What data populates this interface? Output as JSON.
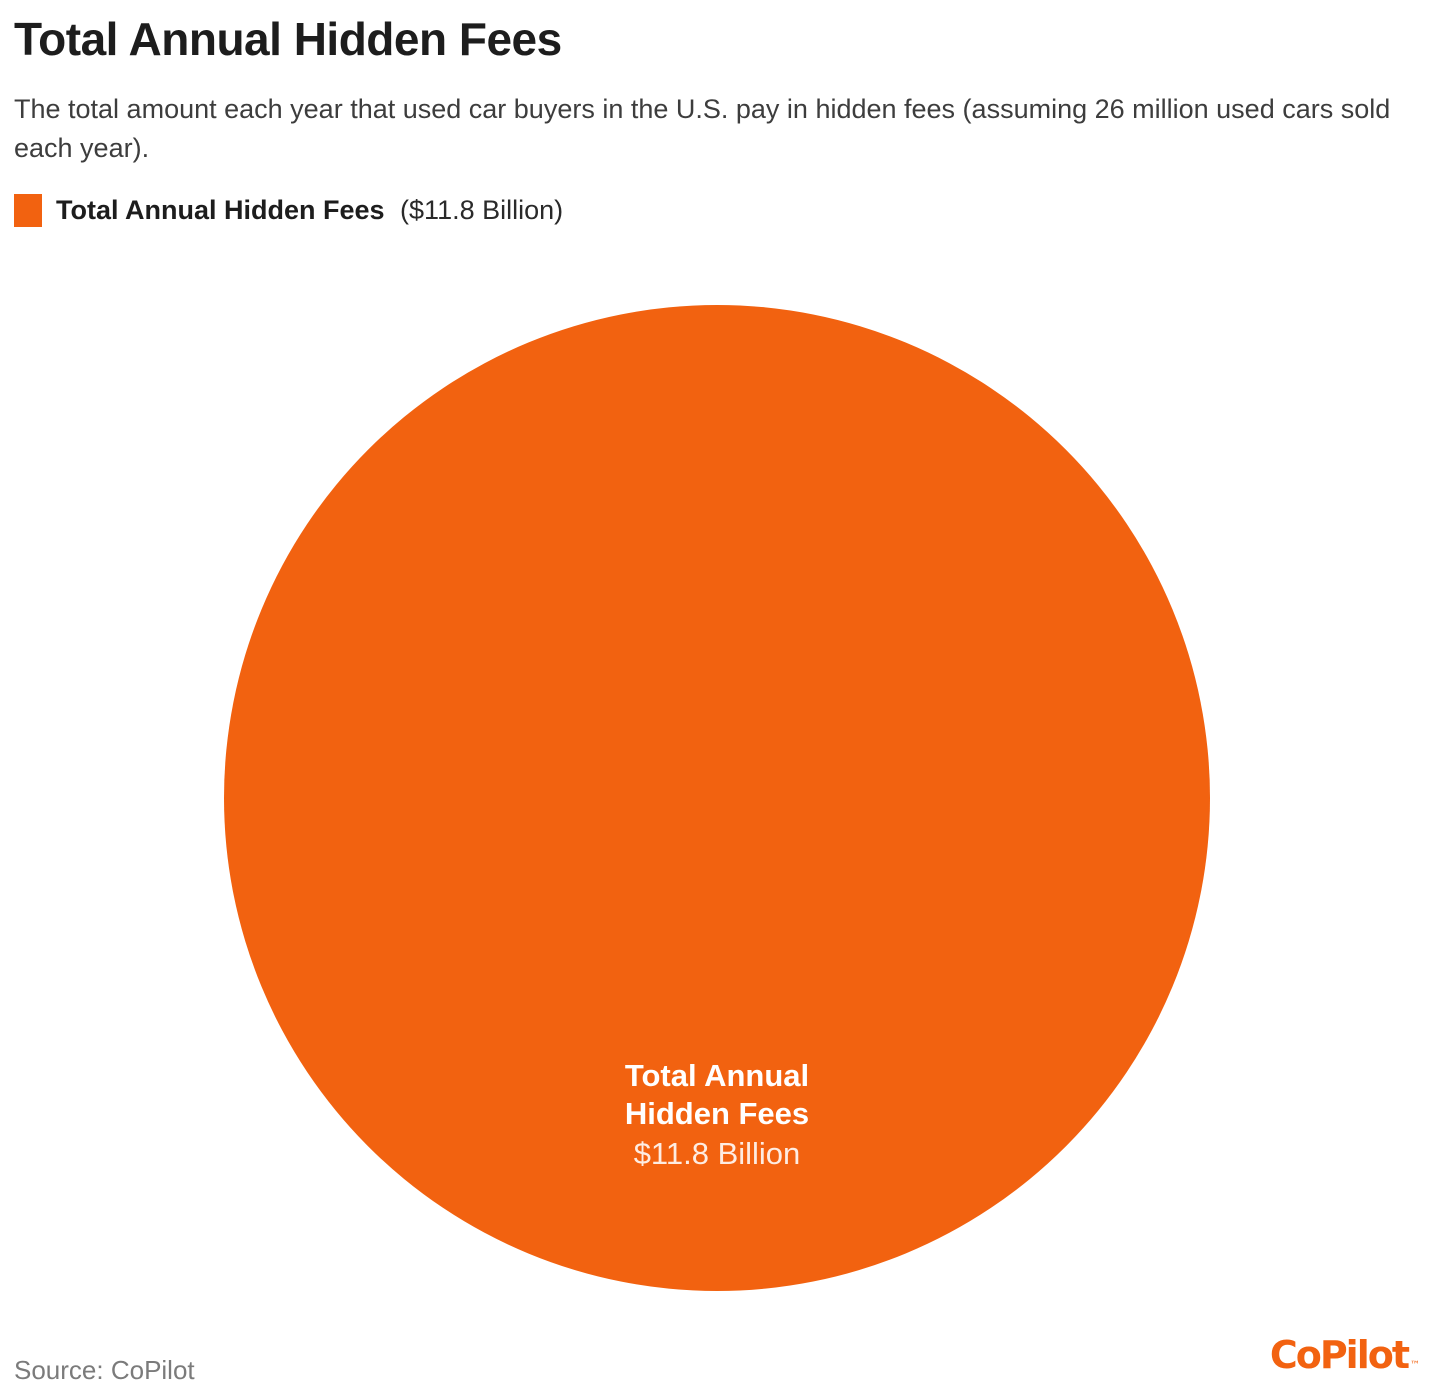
{
  "title": "Total Annual Hidden Fees",
  "subtitle": "The total amount each year that used car buyers in the U.S. pay in hidden fees (assuming 26 million used cars sold each year).",
  "legend": {
    "label": "Total Annual Hidden Fees",
    "value": "($11.8 Billion)"
  },
  "circle_label": {
    "line1": "Total Annual",
    "line2": "Hidden Fees",
    "value": "$11.8 Billion"
  },
  "source": "Source: CoPilot",
  "brand": {
    "name": "CoPilot",
    "tm": "™"
  },
  "colors": {
    "accent": "#F26210",
    "title_text": "#1D1D1D",
    "subtitle_text": "#3D3D3D",
    "source_text": "#7B7B7B",
    "circle_label_text": "#FFFFFF"
  },
  "chart_data": {
    "type": "pie",
    "categories": [
      "Total Annual Hidden Fees"
    ],
    "values": [
      11.8
    ],
    "unit": "USD billions",
    "title": "Total Annual Hidden Fees",
    "subtitle": "The total amount each year that used car buyers in the U.S. pay in hidden fees (assuming 26 million used cars sold each year).",
    "legend_position": "top-left",
    "legend_entries": [
      "Total Annual Hidden Fees ($11.8 Billion)"
    ],
    "annotations": [
      "Total Annual Hidden Fees $11.8 Billion"
    ],
    "series_color": "#F26210",
    "grid": false
  }
}
